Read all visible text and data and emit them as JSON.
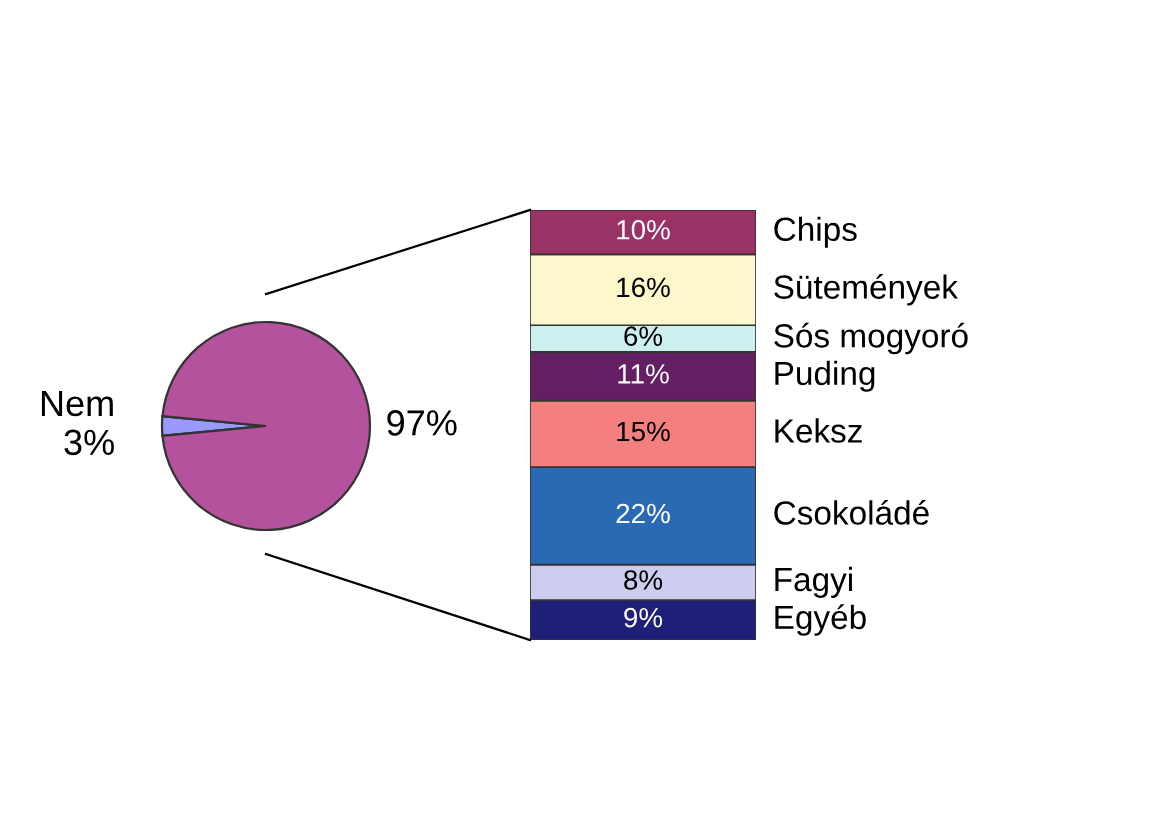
{
  "chart_data": [
    {
      "type": "pie",
      "categories": [
        "Nem",
        null
      ],
      "values": [
        3,
        97
      ],
      "colors": [
        "#9999ff",
        "#b5529e"
      ],
      "value_labels": [
        "3%",
        "97%"
      ]
    },
    {
      "type": "bar",
      "stacked": true,
      "categories": [
        null
      ],
      "series": [
        {
          "name": "Egyéb",
          "color": "#1f1f7a",
          "values": [
            9
          ],
          "value_labels": [
            "9%"
          ]
        },
        {
          "name": "Fagyi",
          "color": "#ccccee",
          "values": [
            8
          ],
          "value_labels": [
            "8%"
          ]
        },
        {
          "name": "Csokoládé",
          "color": "#2a6ab4",
          "values": [
            22
          ],
          "value_labels": [
            "22%"
          ]
        },
        {
          "name": "Keksz",
          "color": "#f47f7f",
          "values": [
            15
          ],
          "value_labels": [
            "15%"
          ]
        },
        {
          "name": "Puding",
          "color": "#641e64",
          "values": [
            11
          ],
          "value_labels": [
            "11%"
          ]
        },
        {
          "name": "Sós mogyoró",
          "color": "#ccf0f0",
          "values": [
            6
          ],
          "value_labels": [
            "6%"
          ]
        },
        {
          "name": "Sütemények",
          "color": "#fcf8cc",
          "values": [
            16
          ],
          "value_labels": [
            "16%"
          ]
        },
        {
          "name": "Chips",
          "color": "#993366",
          "values": [
            10
          ],
          "value_labels": [
            "10%"
          ]
        }
      ]
    }
  ]
}
